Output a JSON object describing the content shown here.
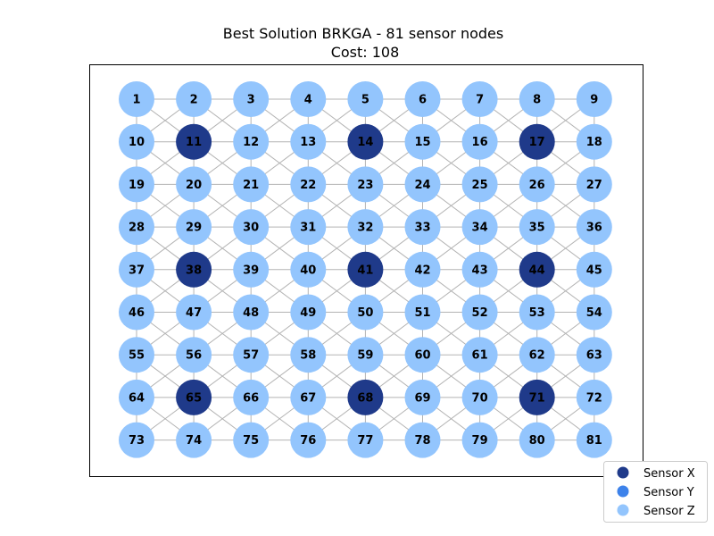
{
  "title": {
    "line1": "Best Solution BRKGA - 81 sensor nodes",
    "line2": "Cost: 108"
  },
  "chart_data": {
    "type": "network-grid",
    "grid": {
      "rows": 9,
      "cols": 9
    },
    "node_labels": [
      1,
      2,
      3,
      4,
      5,
      6,
      7,
      8,
      9,
      10,
      11,
      12,
      13,
      14,
      15,
      16,
      17,
      18,
      19,
      20,
      21,
      22,
      23,
      24,
      25,
      26,
      27,
      28,
      29,
      30,
      31,
      32,
      33,
      34,
      35,
      36,
      37,
      38,
      39,
      40,
      41,
      42,
      43,
      44,
      45,
      46,
      47,
      48,
      49,
      50,
      51,
      52,
      53,
      54,
      55,
      56,
      57,
      58,
      59,
      60,
      61,
      62,
      63,
      64,
      65,
      66,
      67,
      68,
      69,
      70,
      71,
      72,
      73,
      74,
      75,
      76,
      77,
      78,
      79,
      80,
      81
    ],
    "sensor_x_nodes": [
      11,
      14,
      17,
      38,
      41,
      44,
      65,
      68,
      71
    ],
    "sensor_y_nodes": [],
    "default_type": "Sensor Z",
    "edges": "king-move neighbours (horizontal, vertical, diagonal)"
  },
  "legend": [
    {
      "label": "Sensor X",
      "color": "#1f3a8a"
    },
    {
      "label": "Sensor Y",
      "color": "#3d82ea"
    },
    {
      "label": "Sensor Z",
      "color": "#93c5fd"
    }
  ],
  "colors": {
    "sensor_x": "#1f3a8a",
    "sensor_y": "#3d82ea",
    "sensor_z": "#93c5fd",
    "edge": "#b3b3b3",
    "frame": "#000000"
  }
}
